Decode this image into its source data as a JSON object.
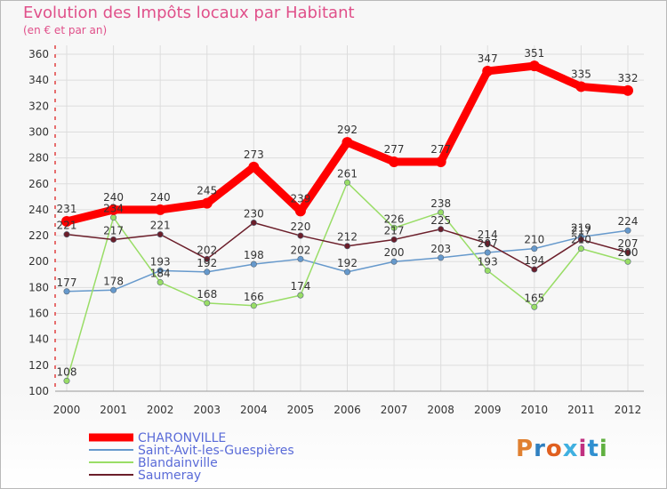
{
  "header": {
    "title": "Evolution des Impôts locaux par Habitant",
    "subtitle": "(en € et par an)"
  },
  "logo": {
    "text": "Proxiti",
    "colors": [
      "#e08030",
      "#3080c0",
      "#e06020",
      "#40b0e0",
      "#c03080",
      "#3090d0",
      "#60b040"
    ]
  },
  "chart_data": {
    "type": "line",
    "title": "Evolution des Impôts locaux par Habitant",
    "subtitle": "(en € et par an)",
    "x": [
      "2000",
      "2001",
      "2002",
      "2003",
      "2004",
      "2005",
      "2006",
      "2007",
      "2008",
      "2009",
      "2010",
      "2011",
      "2012"
    ],
    "ylim": [
      100,
      360
    ],
    "yticks": [
      100,
      120,
      140,
      160,
      180,
      200,
      220,
      240,
      260,
      280,
      300,
      320,
      340,
      360
    ],
    "grid": true,
    "legend_position": "bottom-left",
    "series": [
      {
        "name": "CHARONVILLE",
        "color": "#ff0000",
        "values": [
          231,
          240,
          240,
          245,
          273,
          239,
          292,
          277,
          277,
          347,
          351,
          335,
          332
        ]
      },
      {
        "name": "Saint-Avit-les-Guespières",
        "color": "#6699cc",
        "values": [
          177,
          178,
          193,
          192,
          198,
          202,
          192,
          200,
          203,
          207,
          210,
          219,
          224
        ]
      },
      {
        "name": "Blandainville",
        "color": "#99dd66",
        "values": [
          108,
          234,
          184,
          168,
          166,
          174,
          261,
          226,
          238,
          193,
          165,
          210,
          200
        ]
      },
      {
        "name": "Saumeray",
        "color": "#6b1e2a",
        "values": [
          221,
          217,
          221,
          202,
          230,
          220,
          212,
          217,
          225,
          214,
          194,
          217,
          207
        ]
      }
    ]
  }
}
